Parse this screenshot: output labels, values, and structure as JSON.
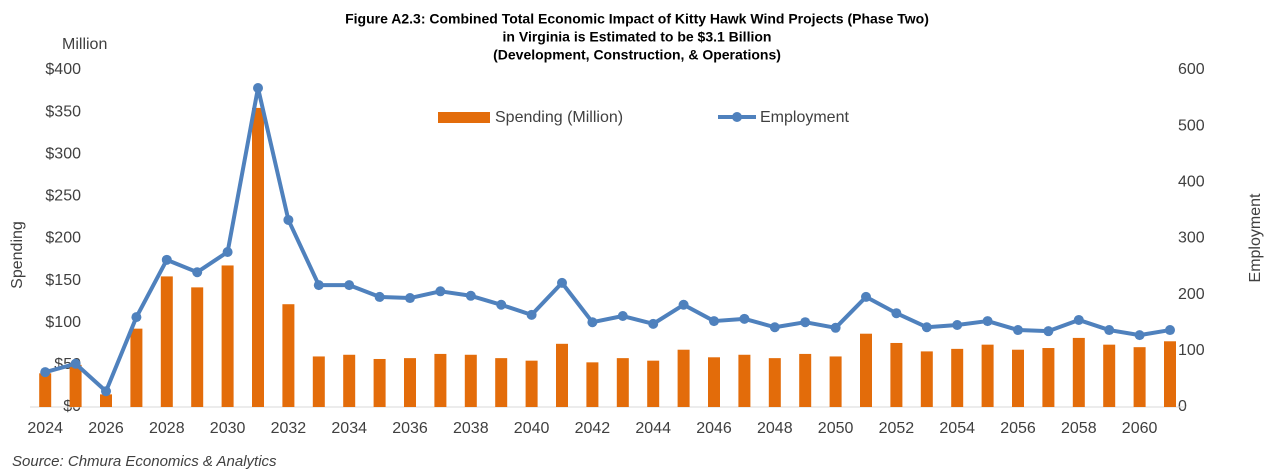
{
  "chart_data": {
    "type": "bar_line",
    "title": [
      "Figure A2.3: Combined Total Economic Impact of Kitty Hawk Wind Projects (Phase Two)",
      "in Virginia is Estimated to be $3.1 Billion",
      "(Development, Construction, & Operations)"
    ],
    "unit_label": "Million",
    "ylabel": "Spending",
    "y2label": "Employment",
    "source": "Source: Chmura Economics & Analytics",
    "categories": [
      "2024",
      null,
      "2026",
      null,
      "2028",
      null,
      "2030",
      null,
      "2032",
      null,
      "2034",
      null,
      "2036",
      null,
      "2038",
      null,
      "2040",
      null,
      "2042",
      null,
      "2044",
      null,
      "2046",
      null,
      "2048",
      null,
      "2050",
      null,
      "2052",
      null,
      "2054",
      null,
      "2056",
      null,
      "2058",
      null,
      "2060",
      null
    ],
    "series": [
      {
        "name": "Spending (Million)",
        "color": "#e36c0a",
        "type": "bar",
        "values": [
          40,
          50,
          15,
          93,
          155,
          142,
          168,
          355,
          122,
          60,
          62,
          57,
          58,
          63,
          62,
          58,
          55,
          75,
          53,
          58,
          55,
          68,
          59,
          62,
          58,
          63,
          60,
          87,
          76,
          66,
          69,
          74,
          68,
          70,
          82,
          74,
          71,
          78
        ]
      },
      {
        "name": "Employment",
        "color": "#4f81bd",
        "type": "line",
        "axis": "y2",
        "values": [
          62,
          77,
          28,
          160,
          262,
          240,
          276,
          568,
          333,
          217,
          217,
          196,
          194,
          206,
          198,
          182,
          164,
          221,
          151,
          162,
          148,
          182,
          153,
          157,
          142,
          151,
          141,
          196,
          167,
          142,
          146,
          153,
          137,
          135,
          155,
          137,
          128,
          137
        ]
      }
    ],
    "ylim": [
      0,
      400
    ],
    "yticks": [
      {
        "value": 0,
        "label": "$0"
      },
      {
        "value": 50,
        "label": "$50"
      },
      {
        "value": 100,
        "label": "$100"
      },
      {
        "value": 150,
        "label": "$150"
      },
      {
        "value": 200,
        "label": "$200"
      },
      {
        "value": 250,
        "label": "$250"
      },
      {
        "value": 300,
        "label": "$300"
      },
      {
        "value": 350,
        "label": "$350"
      },
      {
        "value": 400,
        "label": "$400"
      }
    ],
    "y2lim": [
      0,
      600
    ],
    "y2ticks": [
      0,
      100,
      200,
      300,
      400,
      500,
      600
    ]
  }
}
